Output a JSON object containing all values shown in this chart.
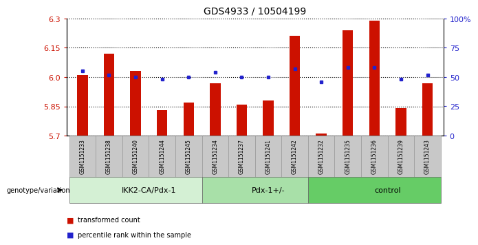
{
  "title": "GDS4933 / 10504199",
  "samples": [
    "GSM1151233",
    "GSM1151238",
    "GSM1151240",
    "GSM1151244",
    "GSM1151245",
    "GSM1151234",
    "GSM1151237",
    "GSM1151241",
    "GSM1151242",
    "GSM1151232",
    "GSM1151235",
    "GSM1151236",
    "GSM1151239",
    "GSM1151243"
  ],
  "transformed_count": [
    6.01,
    6.12,
    6.03,
    5.83,
    5.87,
    5.97,
    5.86,
    5.88,
    6.21,
    5.71,
    6.24,
    6.29,
    5.84,
    5.97
  ],
  "percentile_rank": [
    55,
    52,
    50,
    48,
    50,
    54,
    50,
    50,
    57,
    46,
    58,
    58,
    48,
    52
  ],
  "groups": [
    {
      "label": "IKK2-CA/Pdx-1",
      "start": 0,
      "end": 5
    },
    {
      "label": "Pdx-1+/-",
      "start": 5,
      "end": 9
    },
    {
      "label": "control",
      "start": 9,
      "end": 14
    }
  ],
  "group_colors": [
    "#d4f0d4",
    "#a8e0a8",
    "#66cc66"
  ],
  "ylim_left": [
    5.7,
    6.3
  ],
  "ylim_right": [
    0,
    100
  ],
  "yticks_left": [
    5.7,
    5.85,
    6.0,
    6.15,
    6.3
  ],
  "yticks_right": [
    0,
    25,
    50,
    75,
    100
  ],
  "bar_color": "#cc1100",
  "dot_color": "#2222cc",
  "grid_color": "#000000",
  "legend_items": [
    {
      "label": "transformed count",
      "color": "#cc1100"
    },
    {
      "label": "percentile rank within the sample",
      "color": "#2222cc"
    }
  ],
  "genotype_label": "genotype/variation",
  "sample_box_color": "#c8c8c8",
  "bar_width": 0.4
}
